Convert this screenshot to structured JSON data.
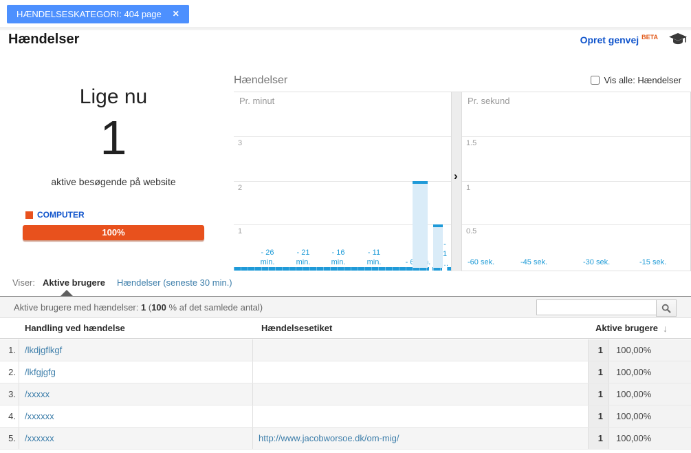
{
  "filter_tag": {
    "label": "HÆNDELSESKATEGORI: 404 page",
    "close_icon": "✕"
  },
  "page": {
    "title": "Hændelser",
    "shortcut_label": "Opret genvej",
    "beta_label": "BETA"
  },
  "right_now": {
    "heading": "Lige nu",
    "active_count": "1",
    "subtitle": "aktive besøgende på website",
    "legend_label": "COMPUTER",
    "bar_value": "100%",
    "bar_color": "#e8511d"
  },
  "chart": {
    "title": "Hændelser",
    "show_all_label": "Vis alle: Hændelser",
    "expand_icon": "›",
    "accent_blue": "#1f9ad8"
  },
  "chart_data": [
    {
      "type": "bar",
      "title": "Pr. minut",
      "x_tick_labels": [
        "- 26 min.",
        "- 21 min.",
        "- 16 min.",
        "- 11 min.",
        "- 6 min.",
        "- 1 min."
      ],
      "x_labels_lines": [
        [
          "- 26",
          "min."
        ],
        [
          "- 21",
          "min."
        ],
        [
          "- 16",
          "min."
        ],
        [
          "- 11",
          "min."
        ],
        [
          "- 6 min."
        ],
        [
          "-",
          "1",
          "…"
        ]
      ],
      "gridlines": [
        1,
        2,
        3
      ],
      "ylim": [
        0,
        3.5
      ],
      "bars": [
        {
          "minutes_ago": 5,
          "value": 2
        },
        {
          "minutes_ago": 2.5,
          "value": 1
        }
      ]
    },
    {
      "type": "bar",
      "title": "Pr. sekund",
      "x_tick_labels": [
        "-60 sek.",
        "-45 sek.",
        "-30 sek.",
        "-15 sek."
      ],
      "gridlines": [
        0.5,
        1,
        1.5
      ],
      "ylim": [
        0,
        1.75
      ],
      "bars": []
    }
  ],
  "tabs": {
    "prefix": "Viser:",
    "active_tab": "Aktive brugere",
    "other_tab": "Hændelser (seneste 30 min.)"
  },
  "toolbar": {
    "summary_prefix": "Aktive brugere med hændelser:",
    "summary_count": "1",
    "paren_open": "(",
    "summary_percent": "100",
    "summary_suffix": "% af det samlede antal)",
    "search_value": "",
    "search_icon": "magnifier"
  },
  "table": {
    "headers": {
      "action": "Handling ved hændelse",
      "label": "Hændelsesetiket",
      "users": "Aktive brugere"
    },
    "sort_icon": "↓",
    "rows": [
      {
        "num": "1.",
        "action": "/lkdjgflkgf",
        "label": "",
        "users": "1",
        "percent": "100,00%"
      },
      {
        "num": "2.",
        "action": "/lkfgjgfg",
        "label": "",
        "users": "1",
        "percent": "100,00%"
      },
      {
        "num": "3.",
        "action": "/xxxxx",
        "label": "",
        "users": "1",
        "percent": "100,00%"
      },
      {
        "num": "4.",
        "action": "/xxxxxx",
        "label": "",
        "users": "1",
        "percent": "100,00%"
      },
      {
        "num": "5.",
        "action": "/xxxxxx",
        "label": "http://www.jacobworsoe.dk/om-mig/",
        "users": "1",
        "percent": "100,00%"
      }
    ]
  }
}
